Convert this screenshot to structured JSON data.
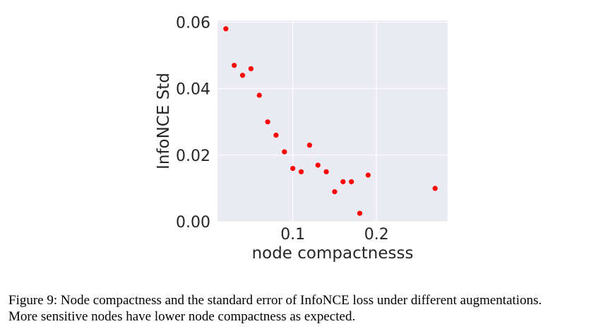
{
  "chart_data": {
    "type": "scatter",
    "title": "",
    "xlabel": "node compactnesss",
    "ylabel": "InfoNCE Std",
    "xlim": [
      0.01,
      0.285
    ],
    "ylim": [
      0.0,
      0.0605
    ],
    "xticks": [
      0.1,
      0.2
    ],
    "xtick_labels": [
      "0.1",
      "0.2"
    ],
    "yticks": [
      0.0,
      0.02,
      0.04,
      0.06
    ],
    "ytick_labels": [
      "0.00",
      "0.02",
      "0.04",
      "0.06"
    ],
    "grid": true,
    "legend": "none",
    "background_color": "#eaeaf2",
    "grid_color": "#ffffff",
    "point_color": "#ff0000",
    "series": [
      {
        "x": [
          0.02,
          0.03,
          0.04,
          0.05,
          0.06,
          0.07,
          0.08,
          0.09,
          0.1,
          0.11,
          0.12,
          0.13,
          0.14,
          0.15,
          0.16,
          0.17,
          0.18,
          0.19,
          0.27
        ],
        "y": [
          0.058,
          0.047,
          0.044,
          0.046,
          0.038,
          0.03,
          0.026,
          0.021,
          0.016,
          0.015,
          0.023,
          0.017,
          0.015,
          0.009,
          0.012,
          0.012,
          0.0025,
          0.014,
          0.01
        ]
      }
    ]
  },
  "caption": {
    "line1": "Figure 9: Node compactness and the standard error of InfoNCE loss under different augmentations.",
    "line2": "More sensitive nodes have lower node compactness as expected."
  }
}
